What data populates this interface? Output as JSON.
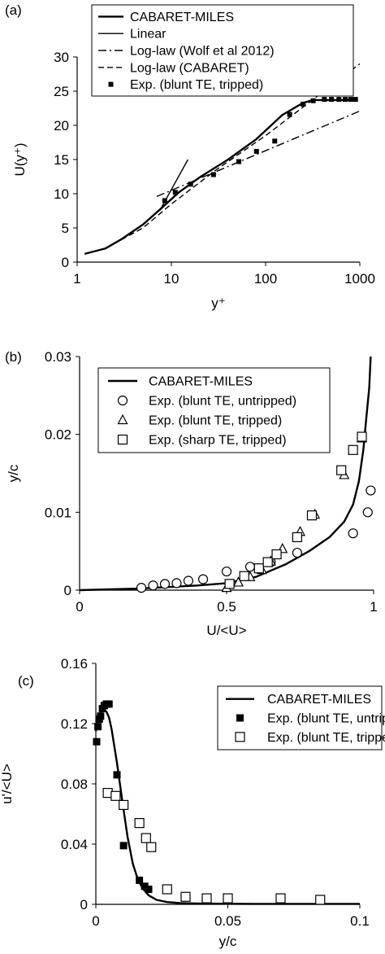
{
  "chart_data": [
    {
      "type": "line",
      "panel_label": "(a)",
      "xlabel": "y⁺",
      "ylabel": "U(y⁺)",
      "xscale": "log",
      "xlim": [
        1,
        1000
      ],
      "ylim": [
        0,
        30
      ],
      "xticks": [
        1,
        10,
        100,
        1000
      ],
      "xtick_labels": [
        "1",
        "10",
        "100",
        "1000"
      ],
      "yticks": [
        0,
        5,
        10,
        15,
        20,
        25,
        30
      ],
      "legend_position": "top-right",
      "legend": [
        "CABARET-MILES",
        "Linear",
        "Log-law (Wolf et al 2012)",
        "Log-law (CABARET)",
        "Exp. (blunt TE, tripped)"
      ],
      "series": [
        {
          "name": "CABARET-MILES",
          "style": "solid",
          "x": [
            1.2,
            2,
            3,
            5,
            8,
            12,
            20,
            40,
            80,
            150,
            250,
            320,
            400,
            600,
            900
          ],
          "y": [
            1.2,
            2.0,
            3.4,
            5.5,
            8.0,
            10.2,
            12.4,
            15.0,
            18.0,
            21.5,
            23.3,
            23.7,
            23.7,
            23.7,
            23.7
          ]
        },
        {
          "name": "Linear",
          "style": "solid",
          "x": [
            7.5,
            15
          ],
          "y": [
            7.5,
            15
          ]
        },
        {
          "name": "Log-law (Wolf et al 2012)",
          "style": "dashdot",
          "x": [
            7,
            1000
          ],
          "y": [
            9.6,
            22.1
          ]
        },
        {
          "name": "Log-law (CABARET)",
          "style": "dashed",
          "x": [
            2,
            5,
            10,
            30,
            100,
            300,
            1000
          ],
          "y": [
            2.0,
            5.0,
            8.5,
            13.5,
            18.5,
            23.5,
            29.0
          ]
        },
        {
          "name": "Exp. (blunt TE, tripped)",
          "style": "marker-filled-square",
          "x": [
            8.5,
            11,
            16,
            28,
            52,
            80,
            125,
            180,
            250,
            320,
            420,
            500,
            600,
            700,
            800,
            900
          ],
          "y": [
            9.0,
            10.2,
            11.4,
            12.8,
            14.7,
            16.2,
            17.7,
            21.6,
            23.1,
            23.6,
            23.8,
            23.8,
            23.8,
            23.8,
            23.8,
            23.8
          ]
        }
      ]
    },
    {
      "type": "scatter",
      "panel_label": "(b)",
      "xlabel": "U/<U>",
      "ylabel": "y/c",
      "xlim": [
        0,
        1
      ],
      "ylim": [
        0,
        0.03
      ],
      "xticks": [
        0,
        0.5,
        1
      ],
      "xtick_labels": [
        "0",
        "0.5",
        "1"
      ],
      "yticks": [
        0,
        0.01,
        0.02,
        0.03
      ],
      "ytick_labels": [
        "0",
        "0.01",
        "0.02",
        "0.03"
      ],
      "legend_position": "top-left",
      "legend": [
        "CABARET-MILES",
        "Exp. (blunt TE, untripped)",
        "Exp. (blunt TE, tripped)",
        "Exp. (sharp TE, tripped)"
      ],
      "series": [
        {
          "name": "CABARET-MILES",
          "style": "solid",
          "x": [
            0,
            0.2,
            0.4,
            0.5,
            0.6,
            0.7,
            0.78,
            0.85,
            0.9,
            0.93,
            0.95,
            0.965,
            0.975,
            0.985,
            0.99
          ],
          "y": [
            0,
            0.0002,
            0.0006,
            0.0009,
            0.0017,
            0.0033,
            0.005,
            0.0068,
            0.0088,
            0.011,
            0.014,
            0.018,
            0.022,
            0.026,
            0.03
          ]
        },
        {
          "name": "Exp. (blunt TE, untripped)",
          "style": "marker-open-circle",
          "x": [
            0.21,
            0.25,
            0.29,
            0.33,
            0.37,
            0.42,
            0.5,
            0.58,
            0.65,
            0.74,
            0.93,
            0.98,
            0.99
          ],
          "y": [
            0.0003,
            0.0006,
            0.0008,
            0.0009,
            0.0012,
            0.0014,
            0.0024,
            0.003,
            0.0036,
            0.0048,
            0.0073,
            0.01,
            0.0128
          ]
        },
        {
          "name": "Exp. (blunt TE, tripped)",
          "style": "marker-open-triangle",
          "x": [
            0.5,
            0.54,
            0.58,
            0.62,
            0.65,
            0.69,
            0.75,
            0.8,
            0.9,
            0.96
          ],
          "y": [
            0.0003,
            0.001,
            0.0017,
            0.0026,
            0.0037,
            0.0053,
            0.0075,
            0.0097,
            0.0148,
            0.0195
          ]
        },
        {
          "name": "Exp. (sharp TE, tripped)",
          "style": "marker-open-square",
          "x": [
            0.51,
            0.56,
            0.61,
            0.64,
            0.67,
            0.74,
            0.79,
            0.89,
            0.93,
            0.96
          ],
          "y": [
            0.0008,
            0.0018,
            0.0028,
            0.0036,
            0.0046,
            0.0068,
            0.0096,
            0.0154,
            0.018,
            0.0197
          ]
        }
      ]
    },
    {
      "type": "scatter",
      "panel_label": "(c)",
      "xlabel": "y/c",
      "ylabel": "u'/<U>",
      "xlim": [
        0,
        0.1
      ],
      "ylim": [
        0,
        0.16
      ],
      "xticks": [
        0,
        0.05,
        0.1
      ],
      "xtick_labels": [
        "0",
        "0.05",
        "0.1"
      ],
      "yticks": [
        0,
        0.04,
        0.08,
        0.12,
        0.16
      ],
      "ytick_labels": [
        "0",
        "0.04",
        "0.08",
        "0.12",
        "0.16"
      ],
      "legend_position": "top-right",
      "legend": [
        "CABARET-MILES",
        "Exp. (blunt TE, untripped)",
        "Exp. (blunt TE, tripped)"
      ],
      "series": [
        {
          "name": "CABARET-MILES",
          "style": "solid",
          "x": [
            0,
            0.001,
            0.002,
            0.003,
            0.004,
            0.005,
            0.006,
            0.008,
            0.01,
            0.012,
            0.014,
            0.016,
            0.018,
            0.02,
            0.023,
            0.027,
            0.032,
            0.04,
            0.06,
            0.08,
            0.1
          ],
          "y": [
            0.115,
            0.124,
            0.128,
            0.129,
            0.128,
            0.124,
            0.116,
            0.094,
            0.069,
            0.045,
            0.027,
            0.016,
            0.01,
            0.006,
            0.003,
            0.0015,
            0.0008,
            0.0005,
            0.0003,
            0.0003,
            0.0003
          ]
        },
        {
          "name": "Exp. (blunt TE, untripped)",
          "style": "marker-filled-square",
          "x": [
            0.0003,
            0.0008,
            0.0013,
            0.0018,
            0.0025,
            0.0032,
            0.004,
            0.005,
            0.008,
            0.0105,
            0.0165,
            0.0185,
            0.02
          ],
          "y": [
            0.108,
            0.118,
            0.123,
            0.125,
            0.13,
            0.132,
            0.133,
            0.133,
            0.086,
            0.039,
            0.016,
            0.012,
            0.01
          ]
        },
        {
          "name": "Exp. (blunt TE, tripped)",
          "style": "marker-open-square",
          "x": [
            0.0045,
            0.0075,
            0.0105,
            0.0165,
            0.019,
            0.021,
            0.027,
            0.034,
            0.042,
            0.05,
            0.07,
            0.085
          ],
          "y": [
            0.074,
            0.072,
            0.066,
            0.054,
            0.044,
            0.038,
            0.01,
            0.005,
            0.004,
            0.004,
            0.004,
            0.003
          ]
        }
      ]
    }
  ]
}
